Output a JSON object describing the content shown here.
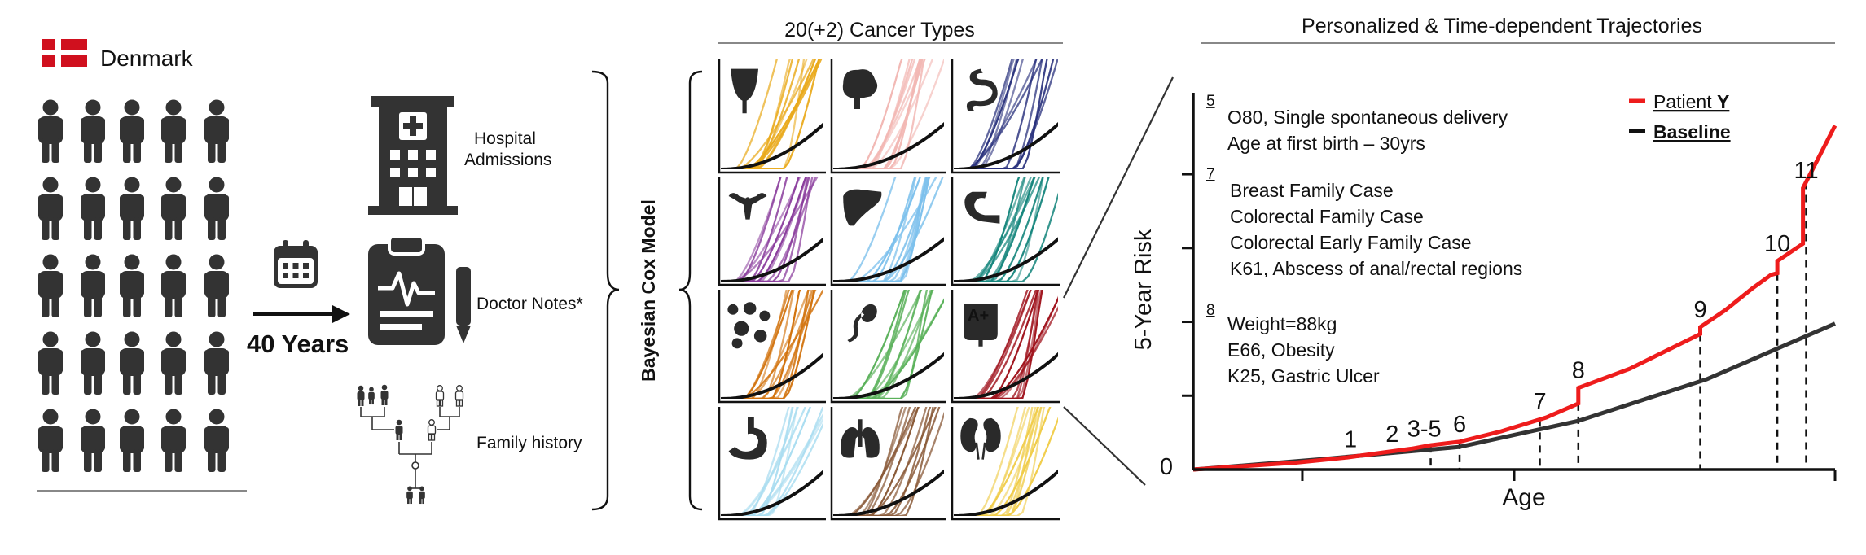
{
  "colors": {
    "figure": "#333333",
    "flag_red": "#d0101e",
    "patient_line": "#ee1c1c",
    "baseline_line": "#333333",
    "rule": "#888888"
  },
  "left_panel": {
    "country": "Denmark",
    "flag_icon": "denmark-flag-icon",
    "people_icon": "person-icon",
    "timespan": "40 Years",
    "calendar_icon": "calendar-icon"
  },
  "sources": [
    {
      "icon": "hospital-icon",
      "label_lines": [
        "Hospital",
        "Admissions"
      ]
    },
    {
      "icon": "clipboard-pen-icon",
      "label_lines": [
        "Doctor Notes*"
      ]
    },
    {
      "icon": "family-tree-icon",
      "label_lines": [
        "Family history"
      ]
    }
  ],
  "model": {
    "label": "Bayesian Cox Model"
  },
  "cancer_panel": {
    "title": "20(+2) Cancer Types",
    "cells": [
      {
        "icon": "bladder-icon",
        "color": "#e9a91a"
      },
      {
        "icon": "brain-icon",
        "color": "#f2b8b4"
      },
      {
        "icon": "intestine-icon",
        "color": "#28307c"
      },
      {
        "icon": "uterus-icon",
        "color": "#8a3c9c"
      },
      {
        "icon": "liver-icon",
        "color": "#7cc0ec"
      },
      {
        "icon": "pancreas-icon",
        "color": "#14857c"
      },
      {
        "icon": "lymph-node-icon",
        "color": "#d2730e"
      },
      {
        "icon": "sperm-icon",
        "color": "#58b058"
      },
      {
        "icon": "blood-bag-icon",
        "color": "#a0141e",
        "badge": "A+"
      },
      {
        "icon": "stomach-icon",
        "color": "#a8dcf0"
      },
      {
        "icon": "lungs-icon",
        "color": "#8a5a38"
      },
      {
        "icon": "kidney-icon",
        "color": "#f0cc48"
      }
    ]
  },
  "trajectory_panel": {
    "title": "Personalized & Time-dependent Trajectories",
    "ylabel": "5-Year  Risk",
    "xlabel": "Age",
    "y_zero_label": "0",
    "legend": [
      {
        "label_prefix": "Patient ",
        "label_bold": "Y",
        "color": "#ee1c1c"
      },
      {
        "label_prefix": "",
        "label_bold": "Baseline",
        "color": "#111111"
      }
    ],
    "event_groups": [
      {
        "num": "5",
        "lines": [
          "O80,  Single spontaneous delivery",
          "Age at first birth – 30yrs"
        ]
      },
      {
        "num": "7",
        "lines": [
          "Breast Family Case",
          "Colorectal Family Case",
          "Colorectal Early Family Case",
          "K61, Abscess of anal/rectal  regions"
        ]
      },
      {
        "num": "8",
        "lines": [
          "Weight=88kg",
          "E66, Obesity",
          "K25, Gastric Ulcer"
        ]
      }
    ],
    "event_markers": [
      "1",
      "2",
      "3-5",
      "6",
      "7",
      "8",
      "9",
      "10",
      "11"
    ]
  },
  "chart_data": {
    "type": "line",
    "xlabel": "Age",
    "ylabel": "5-Year  Risk",
    "series": [
      {
        "name": "Patient Y",
        "x": [
          0,
          0.08,
          0.16,
          0.24,
          0.3,
          0.34,
          0.37,
          0.415,
          0.48,
          0.55,
          0.6,
          0.6,
          0.68,
          0.79,
          0.79,
          0.83,
          0.87,
          0.9,
          0.91,
          0.91,
          0.95,
          0.95,
          1.0
        ],
        "y": [
          0,
          0.01,
          0.02,
          0.035,
          0.05,
          0.06,
          0.07,
          0.08,
          0.11,
          0.15,
          0.19,
          0.235,
          0.29,
          0.39,
          0.41,
          0.46,
          0.52,
          0.56,
          0.565,
          0.6,
          0.65,
          0.81,
          0.99
        ]
      },
      {
        "name": "Baseline",
        "x": [
          0,
          0.2,
          0.415,
          0.6,
          0.8,
          0.95,
          1.0
        ],
        "y": [
          0,
          0.03,
          0.065,
          0.14,
          0.26,
          0.38,
          0.42
        ]
      }
    ],
    "markers": [
      {
        "label": "1",
        "x": 0.245,
        "y": 0.036
      },
      {
        "label": "2",
        "x": 0.31,
        "y": 0.051
      },
      {
        "label": "3-5",
        "x": 0.36,
        "y": 0.067
      },
      {
        "label": "6",
        "x": 0.415,
        "y": 0.08
      },
      {
        "label": "7",
        "x": 0.54,
        "y": 0.145
      },
      {
        "label": "8",
        "x": 0.6,
        "y": 0.235
      },
      {
        "label": "9",
        "x": 0.79,
        "y": 0.41
      },
      {
        "label": "10",
        "x": 0.91,
        "y": 0.6
      },
      {
        "label": "11",
        "x": 0.955,
        "y": 0.81
      }
    ],
    "dashed_event_x": [
      0.37,
      0.415,
      0.54,
      0.6,
      0.79,
      0.91,
      0.955
    ],
    "ylim": [
      0,
      1
    ],
    "xlim": [
      0,
      1
    ],
    "legend_position": "top-right"
  }
}
